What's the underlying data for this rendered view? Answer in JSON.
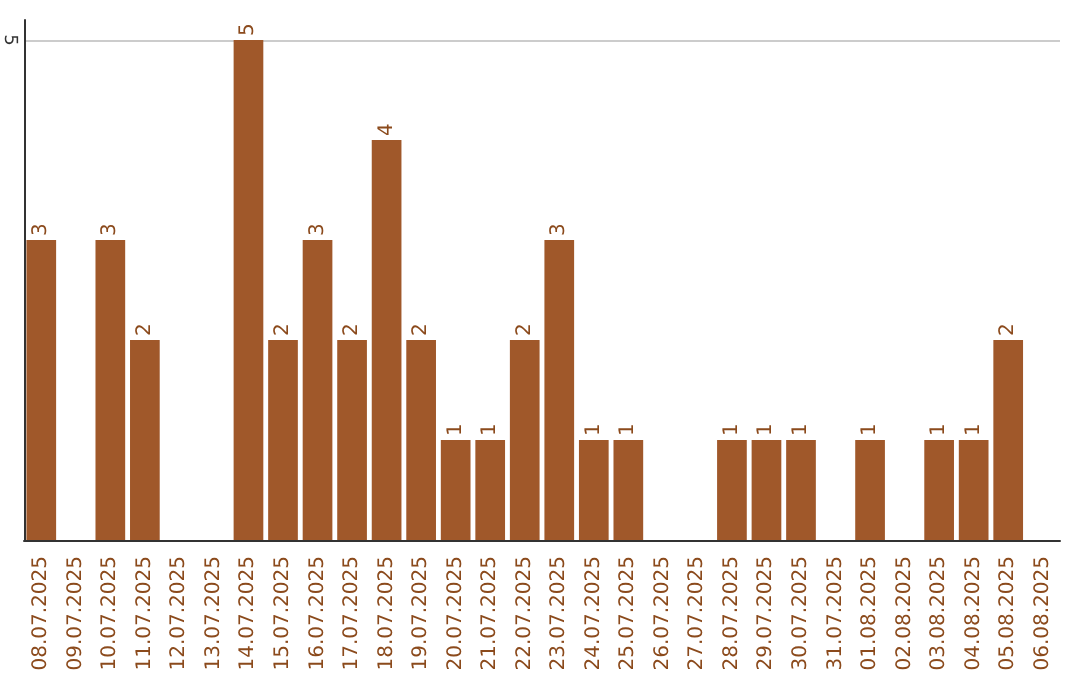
{
  "chart_data": {
    "type": "bar",
    "categories": [
      "08.07.2025",
      "09.07.2025",
      "10.07.2025",
      "11.07.2025",
      "12.07.2025",
      "13.07.2025",
      "14.07.2025",
      "15.07.2025",
      "16.07.2025",
      "17.07.2025",
      "18.07.2025",
      "19.07.2025",
      "20.07.2025",
      "21.07.2025",
      "22.07.2025",
      "23.07.2025",
      "24.07.2025",
      "25.07.2025",
      "26.07.2025",
      "27.07.2025",
      "28.07.2025",
      "29.07.2025",
      "30.07.2025",
      "31.07.2025",
      "01.08.2025",
      "02.08.2025",
      "03.08.2025",
      "04.08.2025",
      "05.08.2025",
      "06.08.2025"
    ],
    "values": [
      3,
      0,
      3,
      2,
      0,
      0,
      5,
      2,
      3,
      2,
      4,
      2,
      1,
      1,
      2,
      3,
      1,
      1,
      0,
      0,
      1,
      1,
      1,
      0,
      1,
      0,
      1,
      1,
      2,
      0
    ],
    "value_labels": [
      "3",
      null,
      "3",
      "2",
      null,
      null,
      "5",
      "2",
      "3",
      "2",
      "4",
      "2",
      "1",
      "1",
      "2",
      "3",
      "1",
      "1",
      null,
      null,
      "1",
      "1",
      "1",
      null,
      "1",
      null,
      "1",
      "1",
      "2",
      null
    ],
    "color": "#a0582a",
    "ylim": [
      0,
      5.2
    ],
    "yticks": [
      5
    ],
    "grid": "y"
  }
}
